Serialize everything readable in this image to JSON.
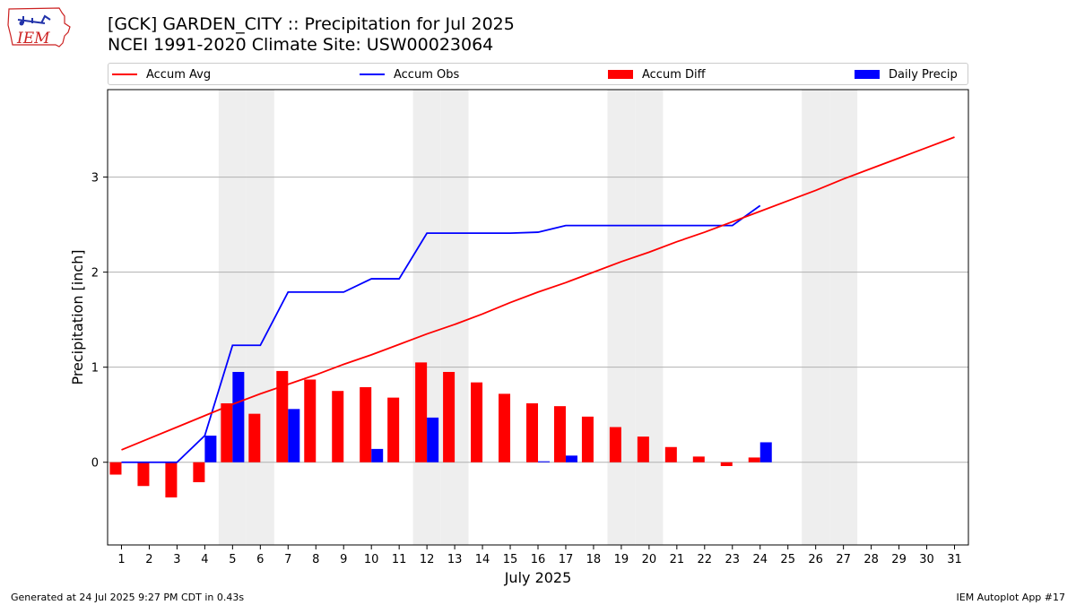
{
  "header": {
    "title_line1": "[GCK] GARDEN_CITY :: Precipitation for Jul 2025",
    "title_line2": "NCEI 1991-2020 Climate Site: USW00023064"
  },
  "logo": {
    "text": "IEM",
    "icon": "iem-iowa-logo"
  },
  "footer": {
    "left": "Generated at 24 Jul 2025 9:27 PM CDT in 0.43s",
    "right": "IEM Autoplot App #17"
  },
  "colors": {
    "accum_avg": "#ff0000",
    "accum_obs": "#0000ff",
    "accum_diff": "#ff0000",
    "daily_precip": "#0000ff",
    "weekend_shade": "#eeeeee",
    "grid": "#b0b0b0"
  },
  "chart_data": {
    "type": "bar",
    "xlabel": "July 2025",
    "ylabel": "Precipitation [inch]",
    "ylim": [
      -0.87,
      3.92
    ],
    "yticks": [
      0,
      1,
      2,
      3
    ],
    "grid": true,
    "legend_position": "top",
    "days": [
      1,
      2,
      3,
      4,
      5,
      6,
      7,
      8,
      9,
      10,
      11,
      12,
      13,
      14,
      15,
      16,
      17,
      18,
      19,
      20,
      21,
      22,
      23,
      24,
      25,
      26,
      27,
      28,
      29,
      30,
      31
    ],
    "weekend_shaded_days": [
      5,
      6,
      12,
      13,
      19,
      20,
      26,
      27
    ],
    "series": [
      {
        "name": "Accum Avg",
        "kind": "line",
        "values": [
          0.13,
          0.25,
          0.37,
          0.49,
          0.61,
          0.72,
          0.82,
          0.92,
          1.03,
          1.13,
          1.24,
          1.35,
          1.45,
          1.56,
          1.68,
          1.79,
          1.89,
          2.0,
          2.11,
          2.21,
          2.32,
          2.42,
          2.53,
          2.64,
          2.75,
          2.86,
          2.98,
          3.09,
          3.2,
          3.31,
          3.42
        ]
      },
      {
        "name": "Accum Obs",
        "kind": "line",
        "values": [
          0.0,
          0.0,
          0.0,
          0.28,
          1.23,
          1.23,
          1.79,
          1.79,
          1.79,
          1.93,
          1.93,
          2.41,
          2.41,
          2.41,
          2.41,
          2.42,
          2.49,
          2.49,
          2.49,
          2.49,
          2.49,
          2.49,
          2.49,
          2.7
        ]
      },
      {
        "name": "Accum Diff",
        "kind": "bar",
        "values": [
          -0.13,
          -0.25,
          -0.37,
          -0.21,
          0.62,
          0.51,
          0.96,
          0.87,
          0.75,
          0.79,
          0.68,
          1.05,
          0.95,
          0.84,
          0.72,
          0.62,
          0.59,
          0.48,
          0.37,
          0.27,
          0.16,
          0.06,
          -0.04,
          0.05
        ]
      },
      {
        "name": "Daily Precip",
        "kind": "bar",
        "values": [
          0.0,
          0.0,
          0.0,
          0.28,
          0.95,
          0.0,
          0.56,
          0.0,
          0.0,
          0.14,
          0.0,
          0.47,
          0.0,
          0.0,
          0.0,
          0.01,
          0.07,
          0.0,
          0.0,
          0.0,
          0.0,
          0.0,
          0.0,
          0.21
        ]
      }
    ]
  }
}
